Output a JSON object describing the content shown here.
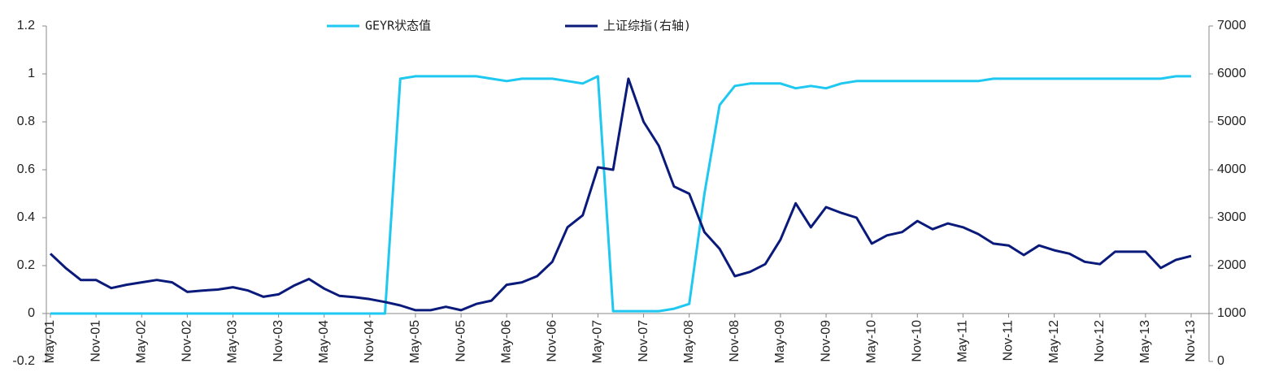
{
  "chart_data": {
    "type": "line",
    "categories": [
      "May-01",
      null,
      null,
      "Nov-01",
      null,
      null,
      "May-02",
      null,
      null,
      "Nov-02",
      null,
      null,
      "May-03",
      null,
      null,
      "Nov-03",
      null,
      null,
      "May-04",
      null,
      null,
      "Nov-04",
      null,
      null,
      "May-05",
      null,
      null,
      "Nov-05",
      null,
      null,
      "May-06",
      null,
      null,
      "Nov-06",
      null,
      null,
      "May-07",
      null,
      null,
      "Nov-07",
      null,
      null,
      "May-08",
      null,
      null,
      "Nov-08",
      null,
      null,
      "May-09",
      null,
      null,
      "Nov-09",
      null,
      null,
      "May-10",
      null,
      null,
      "Nov-10",
      null,
      null,
      "May-11",
      null,
      null,
      "Nov-11",
      null,
      null,
      "May-12",
      null,
      null,
      "Nov-12",
      null,
      null,
      "May-13",
      null,
      null,
      "Nov-13"
    ],
    "series": [
      {
        "name": "GEYR状态值",
        "color": "#1ec8f0",
        "values": [
          0,
          0,
          0,
          0,
          0,
          0,
          0,
          0,
          0,
          0,
          0,
          0,
          0,
          0,
          0,
          0,
          0,
          0,
          0,
          0,
          0,
          0,
          0,
          0.98,
          0.99,
          0.99,
          0.99,
          0.99,
          0.99,
          0.98,
          0.97,
          0.98,
          0.98,
          0.98,
          0.97,
          0.96,
          0.99,
          0.01,
          0.01,
          0.01,
          0.01,
          0.02,
          0.04,
          0.5,
          0.87,
          0.95,
          0.96,
          0.96,
          0.96,
          0.94,
          0.95,
          0.94,
          0.96,
          0.97,
          0.97,
          0.97,
          0.97,
          0.97,
          0.97,
          0.97,
          0.97,
          0.97,
          0.98,
          0.98,
          0.98,
          0.98,
          0.98,
          0.98,
          0.98,
          0.98,
          0.98,
          0.98,
          0.98,
          0.98,
          0.99,
          0.99
        ]
      },
      {
        "name": "上证综指(右轴)",
        "color": "#0a1a7a",
        "axis": "y2",
        "values": [
          2250,
          1950,
          1700,
          1700,
          1530,
          1600,
          1650,
          1700,
          1650,
          1450,
          1480,
          1500,
          1550,
          1480,
          1350,
          1400,
          1580,
          1720,
          1520,
          1370,
          1340,
          1300,
          1240,
          1170,
          1070,
          1070,
          1140,
          1070,
          1200,
          1270,
          1600,
          1650,
          1780,
          2080,
          2800,
          3050,
          4050,
          4000,
          5900,
          5000,
          4500,
          3650,
          3500,
          2700,
          2350,
          1780,
          1870,
          2030,
          2540,
          3300,
          2800,
          3220,
          3100,
          3000,
          2460,
          2630,
          2700,
          2930,
          2760,
          2880,
          2800,
          2660,
          2460,
          2420,
          2220,
          2420,
          2320,
          2250,
          2080,
          2030,
          2290,
          2290,
          2290,
          1950,
          2120,
          2200
        ]
      }
    ],
    "ylim": [
      -0.2,
      1.2
    ],
    "yticks": [
      -0.2,
      0,
      0.2,
      0.4,
      0.6,
      0.8,
      1,
      1.2
    ],
    "y2lim": [
      0,
      7000
    ],
    "y2ticks": [
      0,
      1000,
      2000,
      3000,
      4000,
      5000,
      6000,
      7000
    ],
    "grid": false,
    "legend": "top"
  }
}
